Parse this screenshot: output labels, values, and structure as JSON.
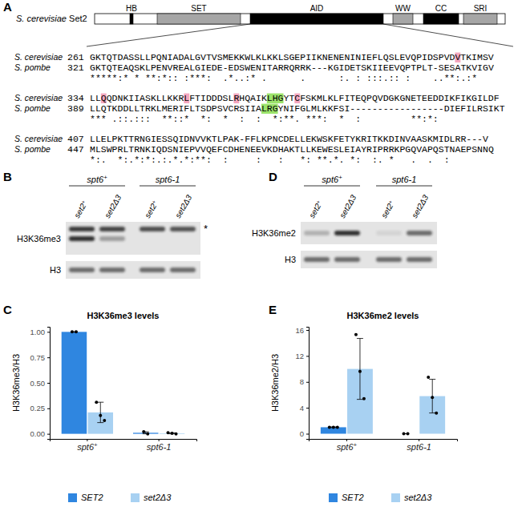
{
  "panel_labels": [
    "A",
    "B",
    "C",
    "D",
    "E"
  ],
  "panel_a": {
    "protein": "S. cerevisiae Set2",
    "domains": [
      "HB",
      "SET",
      "AID",
      "WW",
      "CC",
      "SRI"
    ],
    "blocks": [
      {
        "rows": [
          {
            "name": "S. cerevisiae",
            "start": 261,
            "segments": [
              {
                "text": "GKTQTDASSLLPQNIADALGVTVSMEKKWLKLKKLSGEPIIKNENENINIEFLQSLEVQPIDSPVD"
              },
              {
                "text": "V",
                "color": "#f4a7bf"
              },
              {
                "text": "TKIMSV"
              }
            ]
          },
          {
            "name": "S. pombe",
            "start": 321,
            "segments": [
              {
                "text": "GKTQTEAQSKLPENVREALGIEDE-EDSWENITARRQRRK---KGIDETSKIIEEVQPTPLT-SESATKVIGV"
              }
            ]
          }
        ],
        "conservation": "*****:* * **:*:: :***:  .*..:* .      .      :. : :::.:: :    ..**:.:*"
      },
      {
        "rows": [
          {
            "name": "S. cerevisiae",
            "start": 334,
            "segments": [
              {
                "text": "LL"
              },
              {
                "text": "Q",
                "color": "#f4a7bf"
              },
              {
                "text": "QDNKIIASKLLKKR"
              },
              {
                "text": "L",
                "color": "#f4a7bf"
              },
              {
                "text": "FTIDDDSL"
              },
              {
                "text": "R",
                "color": "#f4a7bf"
              },
              {
                "text": "HQAIK"
              },
              {
                "text": "LHG",
                "color": "#9be36a"
              },
              {
                "text": "YT"
              },
              {
                "text": "C",
                "color": "#f4a7bf"
              },
              {
                "text": "FSKMLKLFITEQPQVDGKGNETEEDDIKFIKGILDF"
              }
            ]
          },
          {
            "name": "S. pombe",
            "start": 389,
            "segments": [
              {
                "text": "LLQTKDDLLTRKLMERIFLTSDPSVCRSIIA"
              },
              {
                "text": "LRG",
                "color": "#9be36a"
              },
              {
                "text": "YNIFGLMLKKFSI-----------------DIEFILRSIKT"
              }
            ]
          }
        ],
        "conservation": "*** .::.:::  **::*  *:  *  :  :  *:**. ***:  *  :         **:*:"
      },
      {
        "rows": [
          {
            "name": "S. cerevisiae",
            "start": 407,
            "segments": [
              {
                "text": "LLELPKTTRNGIESSQIDNVVKTLPAK-FFLKPNCDELLEKWSKFETYKRITKKDINVAASKMIDLRR---V"
              }
            ]
          },
          {
            "name": "S. pombe",
            "start": 447,
            "segments": [
              {
                "text": "MLSWPRLTRNKIQDSNIEPVVQEFCDHENEEVKDHAKTLLKEWESLEIAYRIPRRKPGQVAPQSTNAEPSNNQ"
              }
            ]
          }
        ],
        "conservation": "*:.  *:.*:*:.:.*.*:**:  :     :   :   *: **.*. *:  :. *   .  .  :"
      }
    ]
  },
  "blot_b": {
    "groups": [
      "spt6+",
      "spt6-1"
    ],
    "lanes": [
      "set2+",
      "set2Δ3",
      "set2+",
      "set2Δ3"
    ],
    "rows": [
      "H3K36me3",
      "H3"
    ],
    "marker": "*"
  },
  "blot_d": {
    "groups": [
      "spt6+",
      "spt6-1"
    ],
    "lanes": [
      "set2+",
      "set2Δ3",
      "set2+",
      "set2Δ3"
    ],
    "rows": [
      "H3K36me2",
      "H3"
    ]
  },
  "chart_data": [
    {
      "type": "bar",
      "title": "H3K36me3 levels",
      "ylabel": "H3K36me3/H3",
      "categories": [
        "spt6+",
        "spt6-1"
      ],
      "series": [
        {
          "name": "SET2",
          "color": "#2f86e0",
          "values": [
            1.0,
            0.01
          ],
          "errors": [
            0.0,
            0.01
          ],
          "points": [
            [
              1.0,
              1.0
            ],
            [
              0.02,
              0.0
            ]
          ]
        },
        {
          "name": "set2Δ3",
          "color": "#a8d1f2",
          "values": [
            0.21,
            0.005
          ],
          "errors": [
            0.1,
            0.005
          ],
          "points": [
            [
              0.31,
              0.18,
              0.13
            ],
            [
              0.01,
              0.005,
              0.0
            ]
          ]
        }
      ],
      "ylim": [
        -0.05,
        1.05
      ],
      "yticks": [
        {
          "value": 0,
          "label": "0.00"
        },
        {
          "value": 0.25,
          "label": "0.25"
        },
        {
          "value": 0.5,
          "label": "0.50"
        },
        {
          "value": 0.75,
          "label": "0.75"
        },
        {
          "value": 1,
          "label": "1.00"
        }
      ],
      "grid": false,
      "legend": "bottom"
    },
    {
      "type": "bar",
      "title": "H3K36me2 levels",
      "ylabel": "H3K36me2/H3",
      "categories": [
        "spt6+",
        "spt6-1"
      ],
      "series": [
        {
          "name": "SET2",
          "color": "#2f86e0",
          "values": [
            1.0,
            0.0
          ],
          "errors": [
            0.05,
            0.0
          ],
          "points": [
            [
              1.0,
              1.0,
              1.0
            ],
            [
              0.0,
              0.0
            ]
          ]
        },
        {
          "name": "set2Δ3",
          "color": "#a8d1f2",
          "values": [
            10.0,
            5.8
          ],
          "errors": [
            4.7,
            2.6
          ],
          "points": [
            [
              15.3,
              9.6,
              5.4
            ],
            [
              8.7,
              5.6,
              3.2
            ]
          ]
        }
      ],
      "ylim": [
        -0.8,
        16.5
      ],
      "yticks": [
        0,
        4,
        8,
        12,
        16
      ],
      "grid": false,
      "legend": "bottom"
    }
  ]
}
